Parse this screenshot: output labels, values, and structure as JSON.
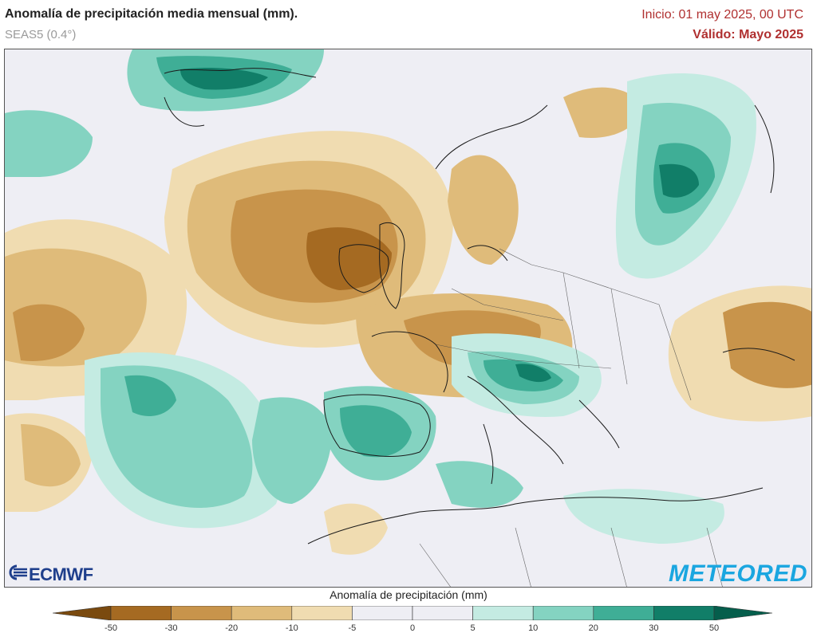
{
  "header": {
    "title": "Anomalía de precipitación media mensual (mm).",
    "subtitle": "SEAS5 (0.4°)",
    "init": "Inicio: 01 may 2025, 00 UTC",
    "valid": "Válido: Mayo 2025"
  },
  "logos": {
    "left": "ECMWF",
    "right": "METEORED"
  },
  "colorbar": {
    "title": "Anomalía de precipitación (mm)",
    "ticks": [
      "-50",
      "-30",
      "-20",
      "-10",
      "-5",
      "0",
      "5",
      "10",
      "20",
      "30",
      "50"
    ],
    "colors": [
      "#7a4a0f",
      "#a56a22",
      "#c8944b",
      "#dfbb7a",
      "#f0dcb1",
      "#eeeef4",
      "#eeeef4",
      "#c4ebe2",
      "#84d3c1",
      "#3fae96",
      "#117e68",
      "#055e4c"
    ]
  },
  "legend_colors": {
    "dry_strong": "#a56a22",
    "dry_moderate": "#c8944b",
    "dry_light": "#f0dcb1",
    "neutral": "#eeeef4",
    "wet_light": "#c4ebe2",
    "wet_moderate": "#84d3c1",
    "wet_strong": "#3fae96",
    "wet_extreme": "#117e68"
  }
}
